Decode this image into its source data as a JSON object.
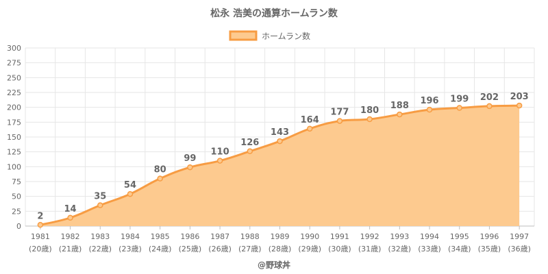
{
  "chart_data": {
    "type": "area",
    "title": "松永 浩美の通算ホームラン数",
    "legend": {
      "label": "ホームラン数",
      "placement": "top-center"
    },
    "categories": [
      "1981",
      "1982",
      "1983",
      "1984",
      "1985",
      "1986",
      "1987",
      "1988",
      "1989",
      "1990",
      "1991",
      "1992",
      "1993",
      "1994",
      "1995",
      "1996",
      "1997"
    ],
    "sublabels": [
      "(20歳)",
      "(21歳)",
      "(22歳)",
      "(23歳)",
      "(24歳)",
      "(25歳)",
      "(26歳)",
      "(27歳)",
      "(28歳)",
      "(29歳)",
      "(30歳)",
      "(31歳)",
      "(32歳)",
      "(33歳)",
      "(34歳)",
      "(35歳)",
      "(36歳)"
    ],
    "series": [
      {
        "name": "ホームラン数",
        "values": [
          2,
          14,
          35,
          54,
          80,
          99,
          110,
          126,
          143,
          164,
          177,
          180,
          188,
          196,
          199,
          202,
          203
        ]
      }
    ],
    "ylim": [
      0,
      300
    ],
    "yticks": [
      0,
      25,
      50,
      75,
      100,
      125,
      150,
      175,
      200,
      225,
      250,
      275,
      300
    ],
    "grid": true,
    "colors": {
      "line": "#f79c43",
      "fill": "#fdca8f",
      "grid": "#e6e6e6",
      "text": "#666666"
    },
    "credit": "@野球丼"
  }
}
